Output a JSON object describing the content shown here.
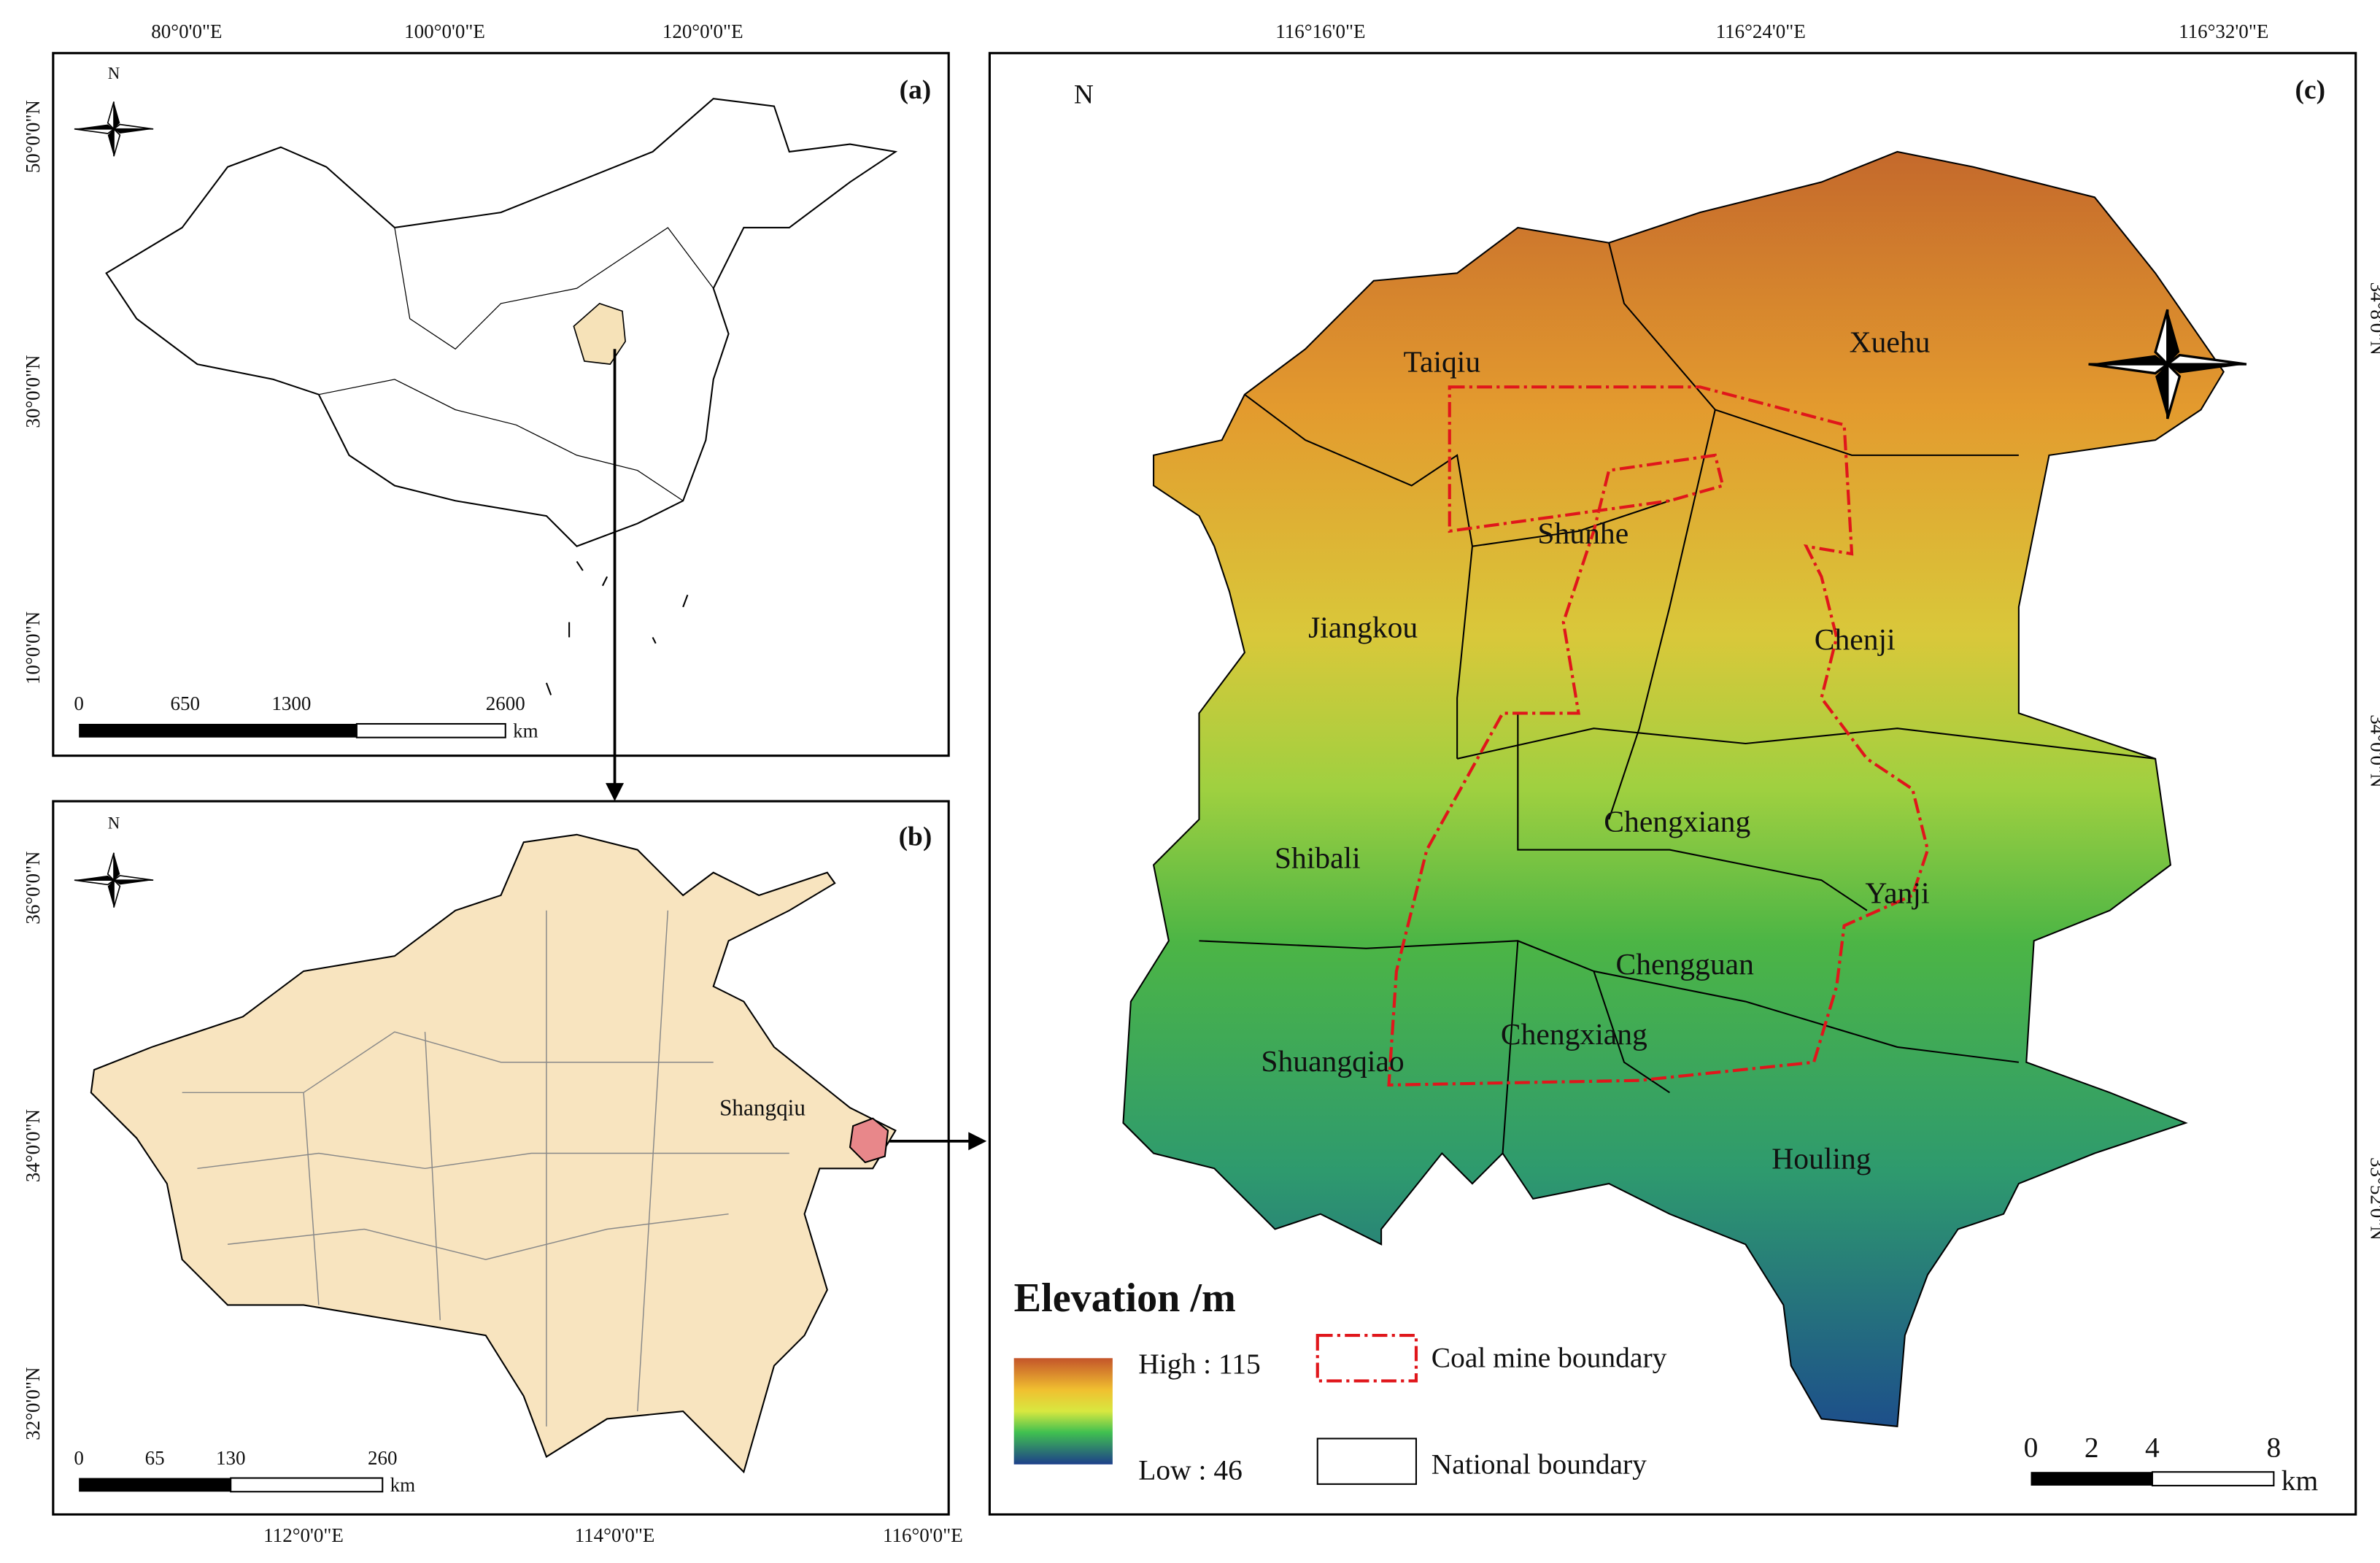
{
  "panels": [
    {
      "label": "(a)",
      "north": "N",
      "lon_labels": [
        "80°0'0\"E",
        "100°0'0\"E",
        "120°0'0\"E"
      ],
      "lat_labels": [
        "50°0'0\"N",
        "30°0'0\"N",
        "10°0'0\"N"
      ],
      "scale": {
        "ticks": [
          "0",
          "650",
          "1300",
          "2600"
        ],
        "unit": "km"
      }
    },
    {
      "label": "(b)",
      "north": "N",
      "place": "Shangqiu",
      "lon_labels": [
        "112°0'0\"E",
        "114°0'0\"E",
        "116°0'0\"E"
      ],
      "lat_labels": [
        "36°0'0\"N",
        "34°0'0\"N",
        "32°0'0\"N"
      ],
      "scale": {
        "ticks": [
          "0",
          "65",
          "130",
          "260"
        ],
        "unit": "km"
      }
    },
    {
      "label": "(c)",
      "north": "N",
      "lon_labels": [
        "116°16'0\"E",
        "116°24'0\"E",
        "116°32'0\"E"
      ],
      "lat_labels": [
        "34°8'0\"N",
        "34°0'0\"N",
        "33°52'0\"N"
      ],
      "places": [
        "Taiqiu",
        "Xuehu",
        "Shunhe",
        "Jiangkou",
        "Chenji",
        "Chengxiang",
        "Shibali",
        "Yanji",
        "Chengguan",
        "Shuangqiao",
        "Chengxiang",
        "Houling"
      ],
      "legend": {
        "title": "Elevation /m",
        "high": "High : 115",
        "low": "Low : 46",
        "coal": "Coal mine boundary",
        "national": "National boundary"
      },
      "scale": {
        "ticks": [
          "0",
          "2",
          "4",
          "8"
        ],
        "unit": "km"
      }
    }
  ]
}
